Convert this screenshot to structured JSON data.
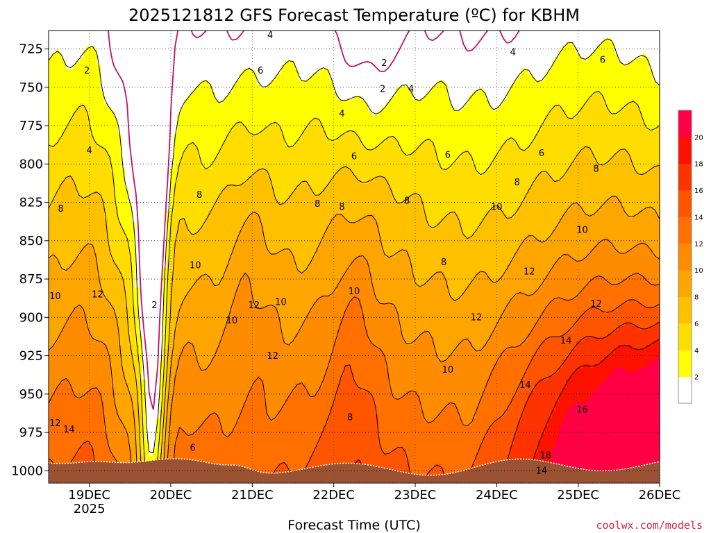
{
  "chart_data": {
    "type": "heatmap",
    "title": "2025121812 GFS Forecast Temperature (ºC) for KBHM",
    "xlabel": "Forecast Time (UTC)",
    "ylabel": "",
    "credit": "coolwx.com/models",
    "x_ticks": [
      {
        "label": "19DEC",
        "sublabel": "2025",
        "t": 0.5
      },
      {
        "label": "20DEC",
        "t": 1.5
      },
      {
        "label": "21DEC",
        "t": 2.5
      },
      {
        "label": "22DEC",
        "t": 3.5
      },
      {
        "label": "23DEC",
        "t": 4.5
      },
      {
        "label": "24DEC",
        "t": 5.5
      },
      {
        "label": "25DEC",
        "t": 6.5
      },
      {
        "label": "26DEC",
        "t": 7.5
      }
    ],
    "x_range": [
      0,
      7.5
    ],
    "y_ticks": [
      "725",
      "750",
      "775",
      "800",
      "825",
      "850",
      "875",
      "900",
      "925",
      "950",
      "975",
      "1000"
    ],
    "y_range": [
      713,
      1008
    ],
    "colorbar": {
      "ticks": [
        "2",
        "4",
        "6",
        "8",
        "10",
        "12",
        "14",
        "16",
        "18",
        "20"
      ],
      "bins": [
        {
          "min": -99,
          "max": 2,
          "color": "#ffffff"
        },
        {
          "min": 2,
          "max": 4,
          "color": "#ffff00"
        },
        {
          "min": 4,
          "max": 6,
          "color": "#ffdd00"
        },
        {
          "min": 6,
          "max": 8,
          "color": "#ffc000"
        },
        {
          "min": 8,
          "max": 10,
          "color": "#ffa500"
        },
        {
          "min": 10,
          "max": 12,
          "color": "#ff8c00"
        },
        {
          "min": 12,
          "max": 14,
          "color": "#ff7000"
        },
        {
          "min": 14,
          "max": 16,
          "color": "#ff5500"
        },
        {
          "min": 16,
          "max": 18,
          "color": "#ff3300"
        },
        {
          "min": 18,
          "max": 20,
          "color": "#ff1100"
        },
        {
          "min": 20,
          "max": 99,
          "color": "#ff0044"
        }
      ]
    },
    "contour_labels": [
      {
        "text": "2",
        "t": 0.47,
        "p": 741
      },
      {
        "text": "4",
        "t": 2.72,
        "p": 718
      },
      {
        "text": "4",
        "t": 0.5,
        "p": 793
      },
      {
        "text": "2",
        "t": 4.1,
        "p": 753
      },
      {
        "text": "2",
        "t": 4.12,
        "p": 736
      },
      {
        "text": "4",
        "t": 4.45,
        "p": 753
      },
      {
        "text": "4",
        "t": 3.6,
        "p": 769
      },
      {
        "text": "4",
        "t": 5.7,
        "p": 729
      },
      {
        "text": "6",
        "t": 2.6,
        "p": 741
      },
      {
        "text": "6",
        "t": 6.8,
        "p": 734
      },
      {
        "text": "6",
        "t": 3.75,
        "p": 797
      },
      {
        "text": "6",
        "t": 4.9,
        "p": 796
      },
      {
        "text": "6",
        "t": 6.05,
        "p": 795
      },
      {
        "text": "8",
        "t": 6.72,
        "p": 805
      },
      {
        "text": "8",
        "t": 5.75,
        "p": 814
      },
      {
        "text": "8",
        "t": 1.85,
        "p": 822
      },
      {
        "text": "8",
        "t": 3.3,
        "p": 828
      },
      {
        "text": "8",
        "t": 3.6,
        "p": 830
      },
      {
        "text": "8",
        "t": 4.4,
        "p": 826
      },
      {
        "text": "8",
        "t": 0.15,
        "p": 831
      },
      {
        "text": "8",
        "t": 4.85,
        "p": 866
      },
      {
        "text": "8",
        "t": 3.7,
        "p": 967
      },
      {
        "text": "10",
        "t": 6.55,
        "p": 845
      },
      {
        "text": "10",
        "t": 5.5,
        "p": 830
      },
      {
        "text": "10",
        "t": 1.8,
        "p": 868
      },
      {
        "text": "10",
        "t": 3.75,
        "p": 885
      },
      {
        "text": "10",
        "t": 2.85,
        "p": 892
      },
      {
        "text": "10",
        "t": 2.25,
        "p": 904
      },
      {
        "text": "10",
        "t": 0.08,
        "p": 888
      },
      {
        "text": "10",
        "t": 4.9,
        "p": 936
      },
      {
        "text": "12",
        "t": 5.9,
        "p": 872
      },
      {
        "text": "12",
        "t": 6.72,
        "p": 893
      },
      {
        "text": "12",
        "t": 2.52,
        "p": 894
      },
      {
        "text": "12",
        "t": 5.25,
        "p": 902
      },
      {
        "text": "12",
        "t": 0.6,
        "p": 887
      },
      {
        "text": "12",
        "t": 2.75,
        "p": 927
      },
      {
        "text": "12",
        "t": 0.08,
        "p": 971
      },
      {
        "text": "14",
        "t": 0.25,
        "p": 975
      },
      {
        "text": "14",
        "t": 6.35,
        "p": 917
      },
      {
        "text": "14",
        "t": 5.85,
        "p": 946
      },
      {
        "text": "14",
        "t": 6.05,
        "p": 1002
      },
      {
        "text": "16",
        "t": 6.55,
        "p": 962
      },
      {
        "text": "18",
        "t": 6.1,
        "p": 992
      },
      {
        "text": "2",
        "t": 1.3,
        "p": 894
      },
      {
        "text": "6",
        "t": 1.77,
        "p": 987
      }
    ]
  }
}
